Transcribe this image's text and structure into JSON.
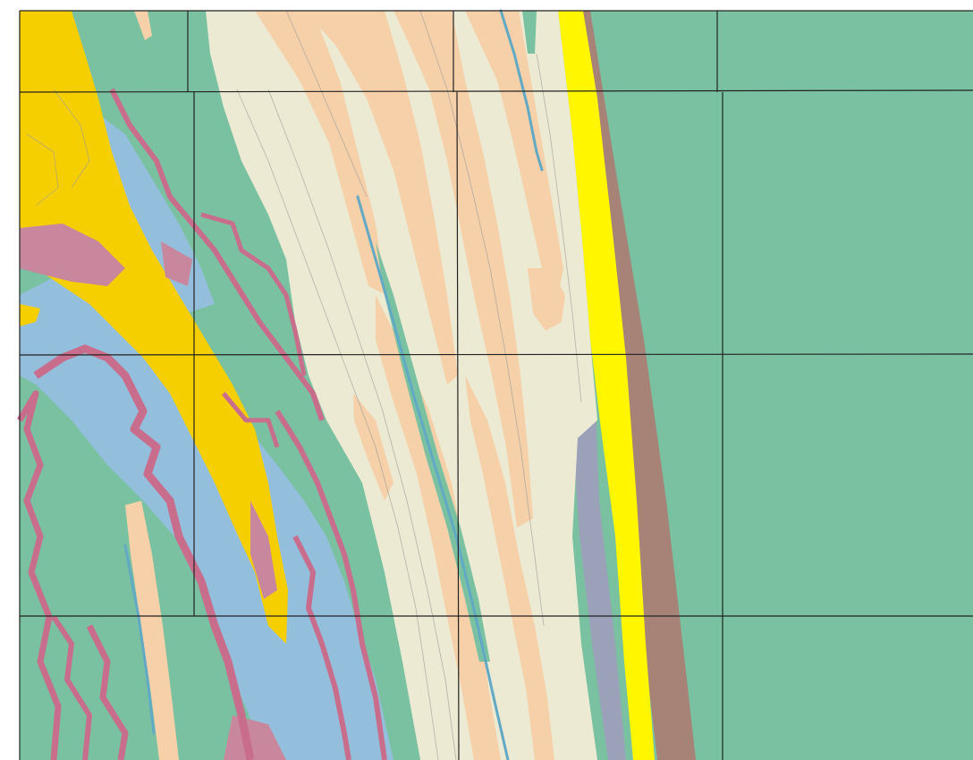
{
  "map": {
    "colors": {
      "background": "#ffffff",
      "green": "#79c1a0",
      "cream": "#ecead2",
      "peach": "#f5d0a9",
      "gold": "#f6cf00",
      "mauve": "#c9879e",
      "rose": "#c96d8c",
      "blue": "#93bfdc",
      "yellow": "#fff600",
      "brown": "#a78276",
      "slate": "#9aa1b9",
      "stream": "#61a9c5",
      "contour": "#9a9a9a",
      "grid": "#222222"
    },
    "units": [
      {
        "id": "green",
        "label": ""
      },
      {
        "id": "cream",
        "label": ""
      },
      {
        "id": "peach",
        "label": ""
      },
      {
        "id": "gold",
        "label": ""
      },
      {
        "id": "mauve",
        "label": ""
      },
      {
        "id": "rose",
        "label": ""
      },
      {
        "id": "blue",
        "label": ""
      },
      {
        "id": "yellow",
        "label": ""
      },
      {
        "id": "brown",
        "label": ""
      },
      {
        "id": "slate",
        "label": ""
      }
    ]
  }
}
